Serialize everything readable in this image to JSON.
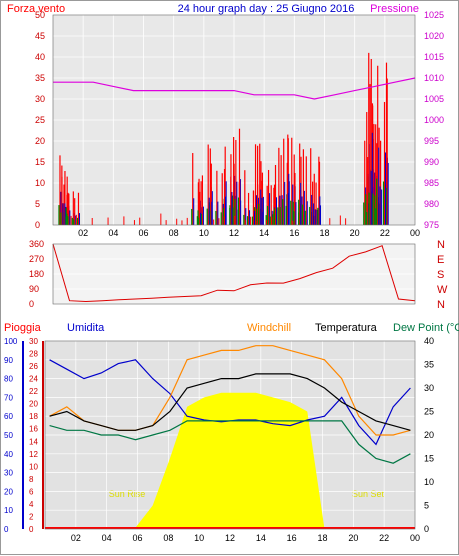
{
  "header": {
    "title": "24 hour graph day : 25 Giugno 2016",
    "left_label": "Forza vento",
    "right_label": "Pressione"
  },
  "colors": {
    "wind": "#ff0000",
    "gust": "#0000cc",
    "avg": "#008800",
    "pressure": "#dd00dd",
    "direction": "#dd0000",
    "rain": "#ff0000",
    "humidity": "#0000cc",
    "windchill": "#ff8800",
    "temperature": "#000000",
    "dewpoint": "#007744",
    "solar": "#ffff00",
    "plot_bg": "#e4e4e4"
  },
  "legend_bottom": {
    "rain": "Pioggia",
    "humidity": "Umidita",
    "windchill": "Windchill",
    "temperature": "Temperatura",
    "dewpoint": "Dew Point (°C"
  },
  "annotations": {
    "sunrise": "Sun Rise",
    "sunset": "Sun Set"
  },
  "chart_data": [
    {
      "type": "line",
      "x_ticks": [
        "02",
        "04",
        "06",
        "08",
        "10",
        "12",
        "14",
        "16",
        "18",
        "20",
        "22",
        "00"
      ],
      "y_left_ticks": [
        0,
        5,
        10,
        15,
        20,
        25,
        30,
        35,
        40,
        45,
        50
      ],
      "y_right_ticks": [
        975,
        980,
        985,
        990,
        995,
        1000,
        1005,
        1010,
        1015,
        1020,
        1025
      ],
      "ylim_left": [
        0,
        50
      ],
      "ylim_right": [
        975,
        1025
      ],
      "series": [
        {
          "key": "pressure",
          "values": [
            1009,
            1009,
            1009,
            1008,
            1007,
            1007,
            1007,
            1007,
            1007,
            1007,
            1006,
            1006,
            1006,
            1005,
            1006,
            1007,
            1008,
            1009,
            1010
          ]
        },
        {
          "key": "wind_bursts",
          "bursts": [
            [
              0.8,
              18
            ],
            [
              1.3,
              12
            ],
            [
              9.6,
              18
            ],
            [
              10.5,
              23
            ],
            [
              11.6,
              22
            ],
            [
              12.4,
              25
            ],
            [
              13.3,
              21
            ],
            [
              14.1,
              23
            ],
            [
              14.8,
              24
            ],
            [
              15.6,
              22
            ],
            [
              16.4,
              21
            ],
            [
              17.3,
              22
            ],
            [
              21.0,
              44
            ],
            [
              21.4,
              48
            ],
            [
              21.8,
              40
            ]
          ]
        }
      ]
    },
    {
      "type": "line",
      "y_ticks": [
        0,
        90,
        180,
        270,
        360
      ],
      "y_right_labels": [
        "N",
        "W",
        "S",
        "E",
        "N"
      ],
      "ylim": [
        0,
        360
      ],
      "series": [
        {
          "key": "direction",
          "values": [
            360,
            20,
            15,
            20,
            25,
            30,
            35,
            40,
            45,
            50,
            80,
            90,
            110,
            120,
            140,
            160,
            200,
            220,
            300,
            320,
            350,
            30,
            20
          ]
        }
      ]
    },
    {
      "type": "line",
      "x_ticks": [
        "02",
        "04",
        "06",
        "08",
        "10",
        "12",
        "14",
        "16",
        "18",
        "20",
        "22",
        "00"
      ],
      "y_rain_ticks": [
        0,
        2,
        4,
        6,
        8,
        10,
        12,
        14,
        16,
        18,
        20,
        22,
        24,
        26,
        28,
        30
      ],
      "y_hum_ticks": [
        0,
        10,
        20,
        30,
        40,
        50,
        60,
        70,
        80,
        90,
        100
      ],
      "y_temp_ticks": [
        0,
        5,
        10,
        15,
        20,
        25,
        30,
        35,
        40
      ],
      "ylim_temp": [
        0,
        40
      ],
      "series": [
        {
          "key": "humidity",
          "values": [
            90,
            85,
            80,
            83,
            88,
            90,
            80,
            72,
            60,
            58,
            57,
            58,
            58,
            56,
            55,
            58,
            60,
            70,
            55,
            45,
            65,
            75
          ]
        },
        {
          "key": "temperature",
          "values": [
            24,
            25,
            23,
            22,
            21,
            21,
            22,
            25,
            30,
            31,
            32,
            32,
            33,
            33,
            33,
            32,
            30,
            27,
            25,
            23,
            22,
            21
          ]
        },
        {
          "key": "windchill",
          "values": [
            24,
            26,
            23,
            22,
            21,
            21,
            22,
            28,
            36,
            37,
            38,
            38,
            39,
            39,
            38,
            37,
            36,
            32,
            24,
            20,
            20,
            21
          ]
        },
        {
          "key": "dewpoint",
          "values": [
            22,
            21,
            21,
            20,
            20,
            19,
            20,
            21,
            23,
            23,
            23,
            23,
            23,
            23,
            23,
            23,
            23,
            23,
            18,
            15,
            14,
            16
          ]
        },
        {
          "key": "solar",
          "values": [
            0,
            0,
            0,
            0,
            0,
            0.3,
            5,
            15,
            26,
            28,
            29,
            29,
            29,
            28,
            27,
            25,
            0,
            0,
            0,
            0,
            0,
            0
          ]
        }
      ]
    }
  ]
}
